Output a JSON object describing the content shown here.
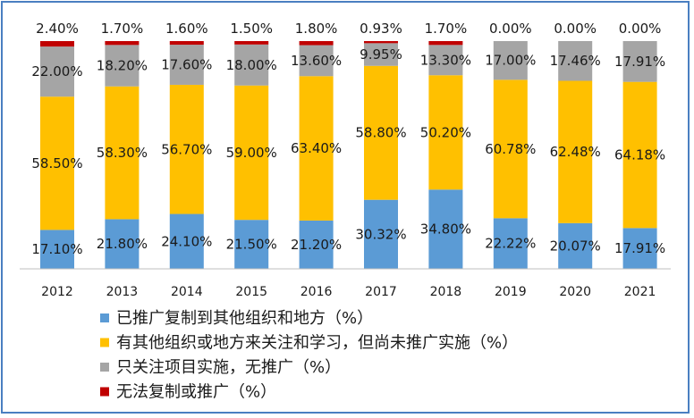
{
  "chart_data": {
    "type": "bar",
    "stacked": true,
    "normalized": true,
    "categories": [
      "2012",
      "2013",
      "2014",
      "2015",
      "2016",
      "2017",
      "2018",
      "2019",
      "2020",
      "2021"
    ],
    "series": [
      {
        "name": "已推广复制到其他组织和地方（%）",
        "color": "#5b9bd5",
        "values": [
          17.1,
          21.8,
          24.1,
          21.5,
          21.2,
          30.32,
          34.8,
          22.22,
          20.07,
          17.91
        ],
        "labels": [
          "17.10%",
          "21.80%",
          "24.10%",
          "21.50%",
          "21.20%",
          "30.32%",
          "34.80%",
          "22.22%",
          "20.07%",
          "17.91%"
        ]
      },
      {
        "name": "有其他组织或地方来关注和学习，但尚未推广实施（%）",
        "color": "#ffc000",
        "values": [
          58.5,
          58.3,
          56.7,
          59.0,
          63.4,
          58.8,
          50.2,
          60.78,
          62.48,
          64.18
        ],
        "labels": [
          "58.50%",
          "58.30%",
          "56.70%",
          "59.00%",
          "63.40%",
          "58.80%",
          "50.20%",
          "60.78%",
          "62.48%",
          "64.18%"
        ]
      },
      {
        "name": "只关注项目实施，无推广（%）",
        "color": "#a5a5a5",
        "values": [
          22.0,
          18.2,
          17.6,
          18.0,
          13.6,
          9.95,
          13.3,
          17.0,
          17.46,
          17.91
        ],
        "labels": [
          "22.00%",
          "18.20%",
          "17.60%",
          "18.00%",
          "13.60%",
          "9.95%",
          "13.30%",
          "17.00%",
          "17.46%",
          "17.91%"
        ]
      },
      {
        "name": "无法复制或推广（%）",
        "color": "#c00000",
        "values": [
          2.4,
          1.7,
          1.6,
          1.5,
          1.8,
          0.93,
          1.7,
          0.0,
          0.0,
          0.0
        ],
        "labels": [
          "2.40%",
          "1.70%",
          "1.60%",
          "1.50%",
          "1.80%",
          "0.93%",
          "1.70%",
          "0.00%",
          "0.00%",
          "0.00%"
        ]
      }
    ],
    "ylim": [
      0,
      100
    ],
    "grid": false,
    "legend_position": "bottom-left",
    "title": "",
    "xlabel": "",
    "ylabel": ""
  }
}
